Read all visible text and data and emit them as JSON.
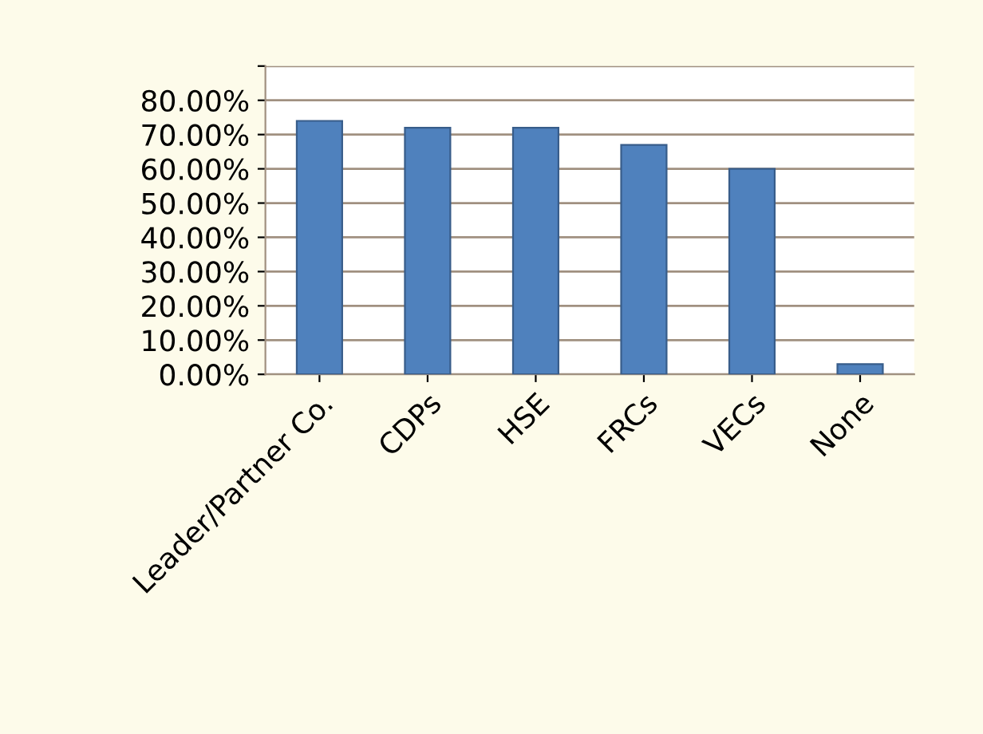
{
  "chart_data": {
    "type": "bar",
    "categories": [
      "Leader/Partner Co.",
      "CDPs",
      "HSE",
      "FRCs",
      "VECs",
      "None"
    ],
    "values": [
      74,
      72,
      72,
      67,
      60,
      3
    ],
    "color": "#4f81bd",
    "ylim": [
      0,
      90
    ],
    "yticks": [
      {
        "value": 0,
        "label": "0.00%"
      },
      {
        "value": 10,
        "label": "10.00%"
      },
      {
        "value": 20,
        "label": "20.00%"
      },
      {
        "value": 30,
        "label": "30.00%"
      },
      {
        "value": 40,
        "label": "40.00%"
      },
      {
        "value": 50,
        "label": "50.00%"
      },
      {
        "value": 60,
        "label": "60.00%"
      },
      {
        "value": 70,
        "label": "70.00%"
      },
      {
        "value": 80,
        "label": "80.00%"
      },
      {
        "value": 90,
        "label": null
      }
    ],
    "grid": "y"
  }
}
